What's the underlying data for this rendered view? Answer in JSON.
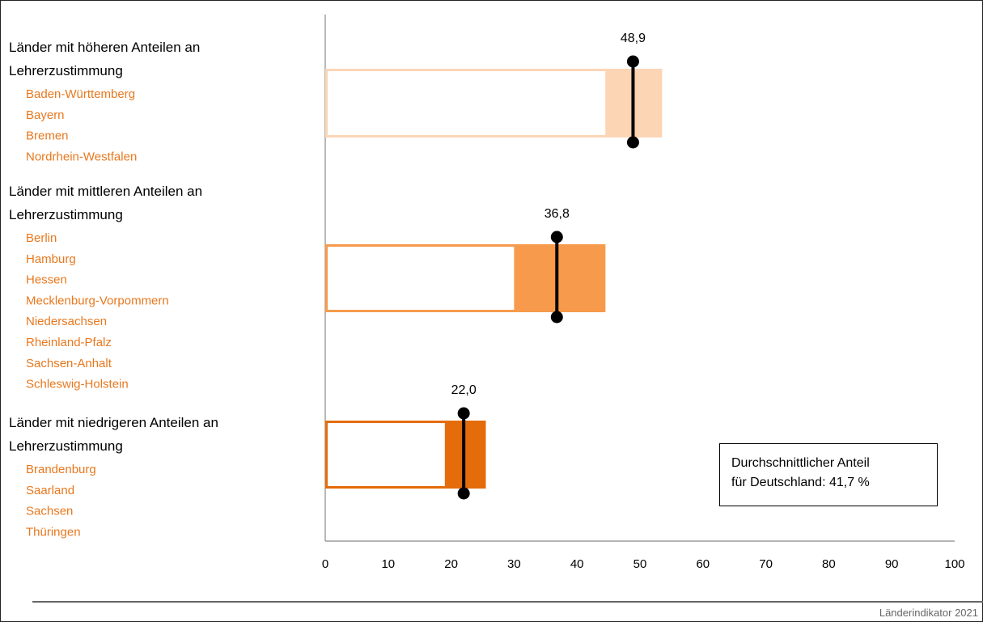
{
  "chart_data": {
    "type": "bar",
    "xlim": [
      0,
      100
    ],
    "x_ticks": [
      0,
      10,
      20,
      30,
      40,
      50,
      60,
      70,
      80,
      90,
      100
    ],
    "groups": [
      {
        "title_lines": [
          "Länder mit höheren Anteilen an",
          "Lehrerzustimmung"
        ],
        "states": [
          "Baden-Württemberg",
          "Bayern",
          "Bremen",
          "Nordrhein-Westfalen"
        ],
        "range": [
          44.5,
          53.5
        ],
        "value": 48.9,
        "value_label": "48,9",
        "color": "#fcd5b5",
        "ci": [
          0,
          53.5
        ]
      },
      {
        "title_lines": [
          "Länder mit mittleren Anteilen an",
          "Lehrerzustimmung"
        ],
        "states": [
          "Berlin",
          "Hamburg",
          "Hessen",
          "Mecklenburg-Vorpommern",
          "Niedersachsen",
          "Rheinland-Pfalz",
          "Sachsen-Anhalt",
          "Schleswig-Holstein"
        ],
        "range": [
          30.0,
          44.5
        ],
        "value": 36.8,
        "value_label": "36,8",
        "color": "#f79a4b",
        "ci": [
          0,
          44.5
        ]
      },
      {
        "title_lines": [
          "Länder mit niedrigeren Anteilen an",
          "Lehrerzustimmung"
        ],
        "states": [
          "Brandenburg",
          "Saarland",
          "Sachsen",
          "Thüringen"
        ],
        "range": [
          19.0,
          25.5
        ],
        "value": 22.0,
        "value_label": "22,0",
        "color": "#e46c0a",
        "ci": [
          0,
          25.5
        ]
      }
    ],
    "annotation_lines": [
      "Durchschnittlicher Anteil",
      "für Deutschland: 41,7 %"
    ]
  },
  "footer": {
    "source": "Länderindikator 2021"
  }
}
